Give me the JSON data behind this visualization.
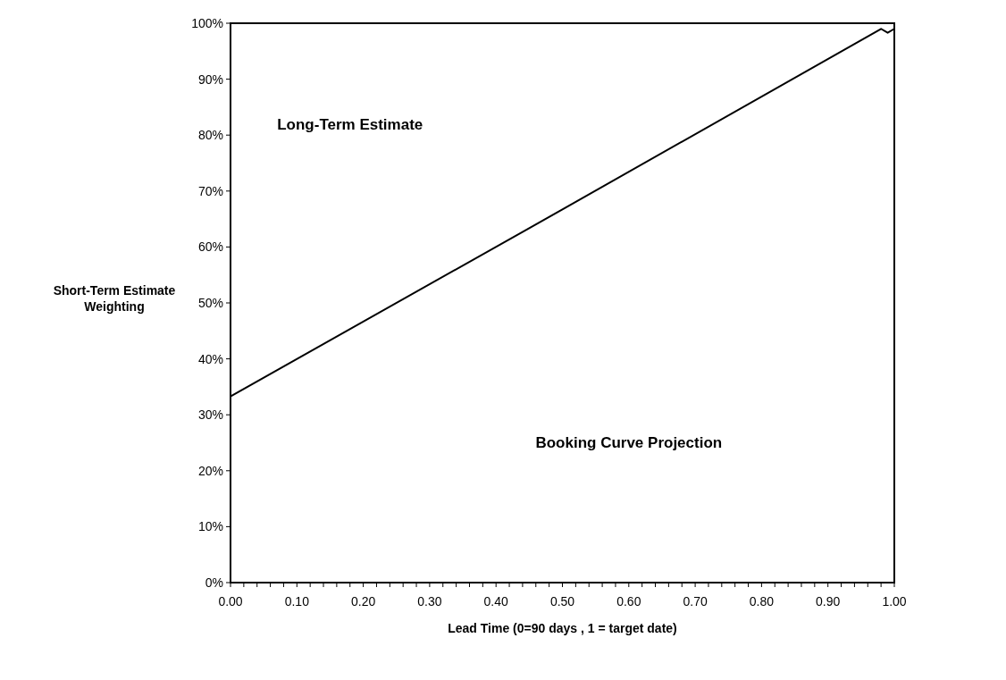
{
  "chart_data": {
    "type": "line",
    "xlabel": "Lead Time (0=90 days , 1 = target date)",
    "ylabel": "Short-Term Estimate\nWeighting",
    "x": [
      0,
      0.5,
      0.98,
      0.99,
      1
    ],
    "series": [
      {
        "color": "#000000",
        "values": [
          33.3,
          66.7,
          99,
          98.3,
          99
        ]
      }
    ],
    "xlim": [
      0,
      1
    ],
    "xticks": [
      {
        "value": 0,
        "label": "0.00"
      },
      {
        "value": 0.1,
        "label": "0.10"
      },
      {
        "value": 0.2,
        "label": "0.20"
      },
      {
        "value": 0.3,
        "label": "0.30"
      },
      {
        "value": 0.4,
        "label": "0.40"
      },
      {
        "value": 0.5,
        "label": "0.50"
      },
      {
        "value": 0.6,
        "label": "0.60"
      },
      {
        "value": 0.7,
        "label": "0.70"
      },
      {
        "value": 0.8,
        "label": "0.80"
      },
      {
        "value": 0.9,
        "label": "0.90"
      },
      {
        "value": 1,
        "label": "1.00"
      },
      {
        "value": 0.02,
        "label": null
      },
      {
        "value": 0.04,
        "label": null
      },
      {
        "value": 0.06,
        "label": null
      },
      {
        "value": 0.08,
        "label": null
      },
      {
        "value": 0.12,
        "label": null
      },
      {
        "value": 0.14,
        "label": null
      },
      {
        "value": 0.16,
        "label": null
      },
      {
        "value": 0.18,
        "label": null
      },
      {
        "value": 0.22,
        "label": null
      },
      {
        "value": 0.24,
        "label": null
      },
      {
        "value": 0.26,
        "label": null
      },
      {
        "value": 0.28,
        "label": null
      },
      {
        "value": 0.32,
        "label": null
      },
      {
        "value": 0.34,
        "label": null
      },
      {
        "value": 0.36,
        "label": null
      },
      {
        "value": 0.38,
        "label": null
      },
      {
        "value": 0.42,
        "label": null
      },
      {
        "value": 0.44,
        "label": null
      },
      {
        "value": 0.46,
        "label": null
      },
      {
        "value": 0.48,
        "label": null
      },
      {
        "value": 0.52,
        "label": null
      },
      {
        "value": 0.54,
        "label": null
      },
      {
        "value": 0.56,
        "label": null
      },
      {
        "value": 0.58,
        "label": null
      },
      {
        "value": 0.62,
        "label": null
      },
      {
        "value": 0.64,
        "label": null
      },
      {
        "value": 0.66,
        "label": null
      },
      {
        "value": 0.68,
        "label": null
      },
      {
        "value": 0.72,
        "label": null
      },
      {
        "value": 0.74,
        "label": null
      },
      {
        "value": 0.76,
        "label": null
      },
      {
        "value": 0.78,
        "label": null
      },
      {
        "value": 0.82,
        "label": null
      },
      {
        "value": 0.84,
        "label": null
      },
      {
        "value": 0.86,
        "label": null
      },
      {
        "value": 0.88,
        "label": null
      },
      {
        "value": 0.92,
        "label": null
      },
      {
        "value": 0.94,
        "label": null
      },
      {
        "value": 0.96,
        "label": null
      },
      {
        "value": 0.98,
        "label": null
      }
    ],
    "ylim": [
      0,
      100
    ],
    "yticks": [
      {
        "value": 0,
        "label": "0%"
      },
      {
        "value": 10,
        "label": "10%"
      },
      {
        "value": 20,
        "label": "20%"
      },
      {
        "value": 30,
        "label": "30%"
      },
      {
        "value": 40,
        "label": "40%"
      },
      {
        "value": 50,
        "label": "50%"
      },
      {
        "value": 60,
        "label": "60%"
      },
      {
        "value": 70,
        "label": "70%"
      },
      {
        "value": 80,
        "label": "80%"
      },
      {
        "value": 90,
        "label": "90%"
      },
      {
        "value": 100,
        "label": "100%"
      }
    ],
    "annotations": [
      "Long-Term Estimate",
      "Booking Curve Projection"
    ],
    "grid": false,
    "marker": "none",
    "line_style": "solid"
  }
}
